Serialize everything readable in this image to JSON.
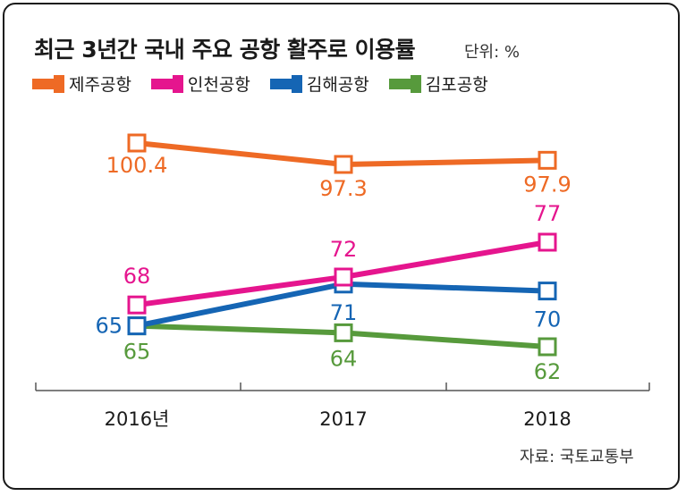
{
  "title": "최근 3년간 국내 주요 공항 활주로 이용률",
  "unit": "단위: %",
  "source": "자료: 국토교통부",
  "colors": {
    "제주공항": "#ee6a25",
    "인천공항": "#e5158e",
    "김해공항": "#1565b4",
    "김포공항": "#579a3c"
  },
  "chart_data": {
    "type": "line",
    "categories": [
      "2016년",
      "2017",
      "2018"
    ],
    "series": [
      {
        "name": "제주공항",
        "values": [
          100.4,
          97.3,
          97.9
        ],
        "labels": [
          "100.4",
          "97.3",
          "97.9"
        ]
      },
      {
        "name": "인천공항",
        "values": [
          68,
          72,
          77
        ],
        "labels": [
          "68",
          "72",
          "77"
        ]
      },
      {
        "name": "김해공항",
        "values": [
          65,
          71,
          70
        ],
        "labels": [
          "65",
          "71",
          "70"
        ]
      },
      {
        "name": "김포공항",
        "values": [
          65,
          64,
          62
        ],
        "labels": [
          "65",
          "64",
          "62"
        ]
      }
    ],
    "legend_position": "top-left",
    "grid": false
  }
}
